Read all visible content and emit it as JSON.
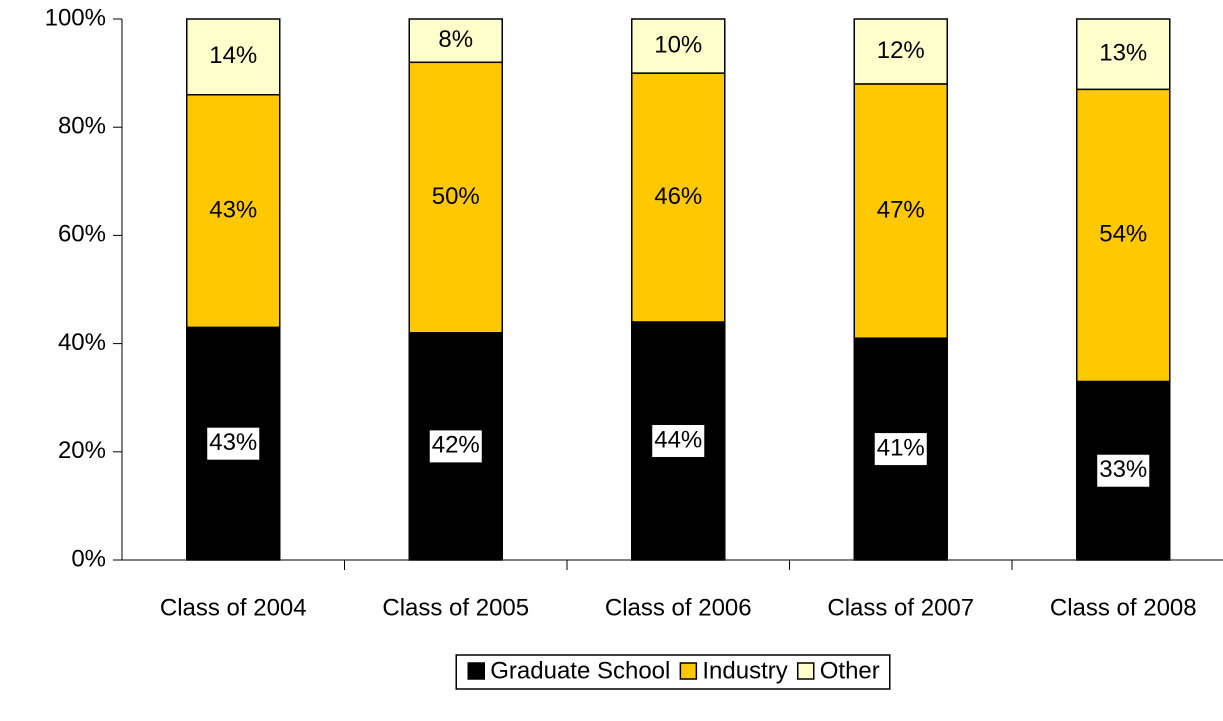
{
  "chart_data": {
    "type": "stacked_bar",
    "categories": [
      "Class of 2004",
      "Class of 2005",
      "Class of 2006",
      "Class of 2007",
      "Class of 2008"
    ],
    "series": [
      {
        "name": "Graduate School",
        "color": "#000000",
        "values": [
          43,
          42,
          44,
          41,
          33
        ],
        "value_labels": [
          "43%",
          "42%",
          "44%",
          "41%",
          "33%"
        ]
      },
      {
        "name": "Industry",
        "color": "#ffc800",
        "values": [
          43,
          50,
          46,
          47,
          54
        ],
        "value_labels": [
          "43%",
          "50%",
          "46%",
          "47%",
          "54%"
        ]
      },
      {
        "name": "Other",
        "color": "#ffffcc",
        "values": [
          14,
          8,
          10,
          12,
          13
        ],
        "value_labels": [
          "14%",
          "8%",
          "10%",
          "12%",
          "13%"
        ]
      }
    ],
    "ylim": [
      0,
      100
    ],
    "yticks": [
      {
        "value": 0,
        "label": "0%"
      },
      {
        "value": 20,
        "label": "20%"
      },
      {
        "value": 40,
        "label": "40%"
      },
      {
        "value": 60,
        "label": "60%"
      },
      {
        "value": 80,
        "label": "80%"
      },
      {
        "value": 100,
        "label": "100%"
      }
    ],
    "grid": false,
    "legend": "bottom"
  }
}
